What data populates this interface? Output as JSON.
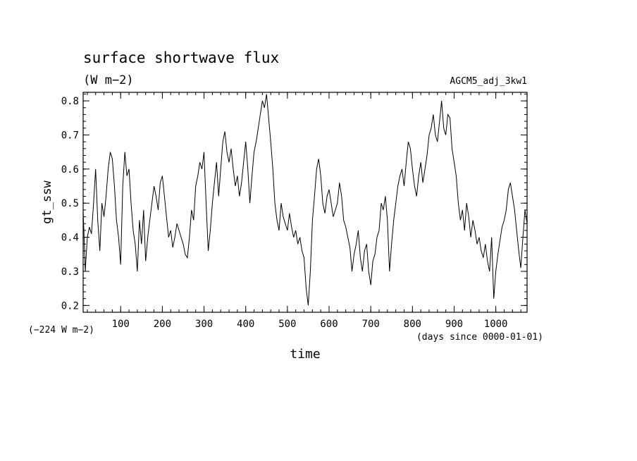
{
  "chart_data": {
    "type": "line",
    "title": "surface shortwave flux",
    "units": "(W m−2)",
    "run_label": "AGCM5_adj_3kw1",
    "ylabel": "gt_ssw",
    "xlabel": "time",
    "x_units": "(days since 0000-01-01)",
    "offset_note": "(−224 W m−2)",
    "xlim": [
      10,
      1075
    ],
    "ylim": [
      0.18,
      0.825
    ],
    "x_ticks": [
      100,
      200,
      300,
      400,
      500,
      600,
      700,
      800,
      900,
      1000
    ],
    "y_ticks": [
      0.2,
      0.3,
      0.4,
      0.5,
      0.6,
      0.7,
      0.8
    ],
    "y_tick_labels": [
      "0.2",
      "0.3",
      "0.4",
      "0.5",
      "0.6",
      "0.7",
      "0.8"
    ],
    "grid": false,
    "series": [
      {
        "color": "#000000",
        "x": [
          10,
          15,
          20,
          25,
          30,
          35,
          40,
          45,
          50,
          55,
          60,
          65,
          70,
          75,
          80,
          85,
          90,
          95,
          100,
          105,
          110,
          115,
          120,
          125,
          130,
          135,
          140,
          145,
          150,
          155,
          160,
          165,
          170,
          175,
          180,
          185,
          190,
          195,
          200,
          205,
          210,
          215,
          220,
          225,
          230,
          235,
          240,
          245,
          250,
          255,
          260,
          265,
          270,
          275,
          280,
          285,
          290,
          295,
          300,
          305,
          310,
          315,
          320,
          325,
          330,
          335,
          340,
          345,
          350,
          355,
          360,
          365,
          370,
          375,
          380,
          385,
          390,
          395,
          400,
          405,
          410,
          415,
          420,
          425,
          430,
          435,
          440,
          445,
          450,
          455,
          460,
          465,
          470,
          475,
          480,
          485,
          490,
          495,
          500,
          505,
          510,
          515,
          520,
          525,
          530,
          535,
          540,
          545,
          550,
          555,
          560,
          565,
          570,
          575,
          580,
          585,
          590,
          595,
          600,
          605,
          610,
          615,
          620,
          625,
          630,
          635,
          640,
          645,
          650,
          655,
          660,
          665,
          670,
          675,
          680,
          685,
          690,
          695,
          700,
          705,
          710,
          715,
          720,
          725,
          730,
          735,
          740,
          745,
          750,
          755,
          760,
          765,
          770,
          775,
          780,
          785,
          790,
          795,
          800,
          805,
          810,
          815,
          820,
          825,
          830,
          835,
          840,
          845,
          850,
          855,
          860,
          865,
          870,
          875,
          880,
          885,
          890,
          895,
          900,
          905,
          910,
          915,
          920,
          925,
          930,
          935,
          940,
          945,
          950,
          955,
          960,
          965,
          970,
          975,
          980,
          985,
          990,
          995,
          1000,
          1005,
          1010,
          1015,
          1020,
          1025,
          1030,
          1035,
          1040,
          1045,
          1050,
          1055,
          1060,
          1065,
          1070,
          1075
        ],
        "y": [
          0.48,
          0.3,
          0.4,
          0.43,
          0.41,
          0.5,
          0.6,
          0.45,
          0.36,
          0.5,
          0.46,
          0.52,
          0.6,
          0.65,
          0.63,
          0.55,
          0.45,
          0.4,
          0.32,
          0.55,
          0.65,
          0.58,
          0.6,
          0.5,
          0.42,
          0.38,
          0.3,
          0.45,
          0.38,
          0.48,
          0.33,
          0.4,
          0.45,
          0.5,
          0.55,
          0.52,
          0.48,
          0.56,
          0.58,
          0.52,
          0.46,
          0.4,
          0.42,
          0.37,
          0.4,
          0.44,
          0.42,
          0.4,
          0.38,
          0.35,
          0.34,
          0.4,
          0.48,
          0.45,
          0.55,
          0.58,
          0.62,
          0.6,
          0.65,
          0.5,
          0.36,
          0.42,
          0.5,
          0.56,
          0.62,
          0.52,
          0.6,
          0.68,
          0.71,
          0.65,
          0.62,
          0.66,
          0.6,
          0.55,
          0.58,
          0.52,
          0.56,
          0.62,
          0.68,
          0.6,
          0.5,
          0.58,
          0.65,
          0.68,
          0.72,
          0.76,
          0.8,
          0.78,
          0.82,
          0.75,
          0.68,
          0.6,
          0.5,
          0.45,
          0.42,
          0.5,
          0.46,
          0.44,
          0.42,
          0.47,
          0.43,
          0.4,
          0.42,
          0.38,
          0.4,
          0.36,
          0.34,
          0.25,
          0.2,
          0.3,
          0.45,
          0.52,
          0.6,
          0.63,
          0.58,
          0.5,
          0.47,
          0.52,
          0.54,
          0.5,
          0.46,
          0.48,
          0.5,
          0.56,
          0.52,
          0.45,
          0.43,
          0.4,
          0.37,
          0.3,
          0.35,
          0.38,
          0.42,
          0.34,
          0.3,
          0.36,
          0.38,
          0.3,
          0.26,
          0.33,
          0.35,
          0.4,
          0.42,
          0.5,
          0.48,
          0.52,
          0.45,
          0.3,
          0.38,
          0.45,
          0.5,
          0.55,
          0.58,
          0.6,
          0.55,
          0.62,
          0.68,
          0.66,
          0.6,
          0.55,
          0.52,
          0.58,
          0.62,
          0.56,
          0.6,
          0.64,
          0.7,
          0.72,
          0.76,
          0.7,
          0.68,
          0.74,
          0.8,
          0.72,
          0.7,
          0.76,
          0.75,
          0.66,
          0.62,
          0.58,
          0.5,
          0.45,
          0.48,
          0.42,
          0.5,
          0.46,
          0.4,
          0.45,
          0.42,
          0.38,
          0.4,
          0.36,
          0.34,
          0.38,
          0.33,
          0.3,
          0.4,
          0.22,
          0.3,
          0.35,
          0.39,
          0.43,
          0.45,
          0.48,
          0.54,
          0.56,
          0.52,
          0.48,
          0.42,
          0.36,
          0.31,
          0.4,
          0.48,
          0.44
        ]
      }
    ]
  }
}
